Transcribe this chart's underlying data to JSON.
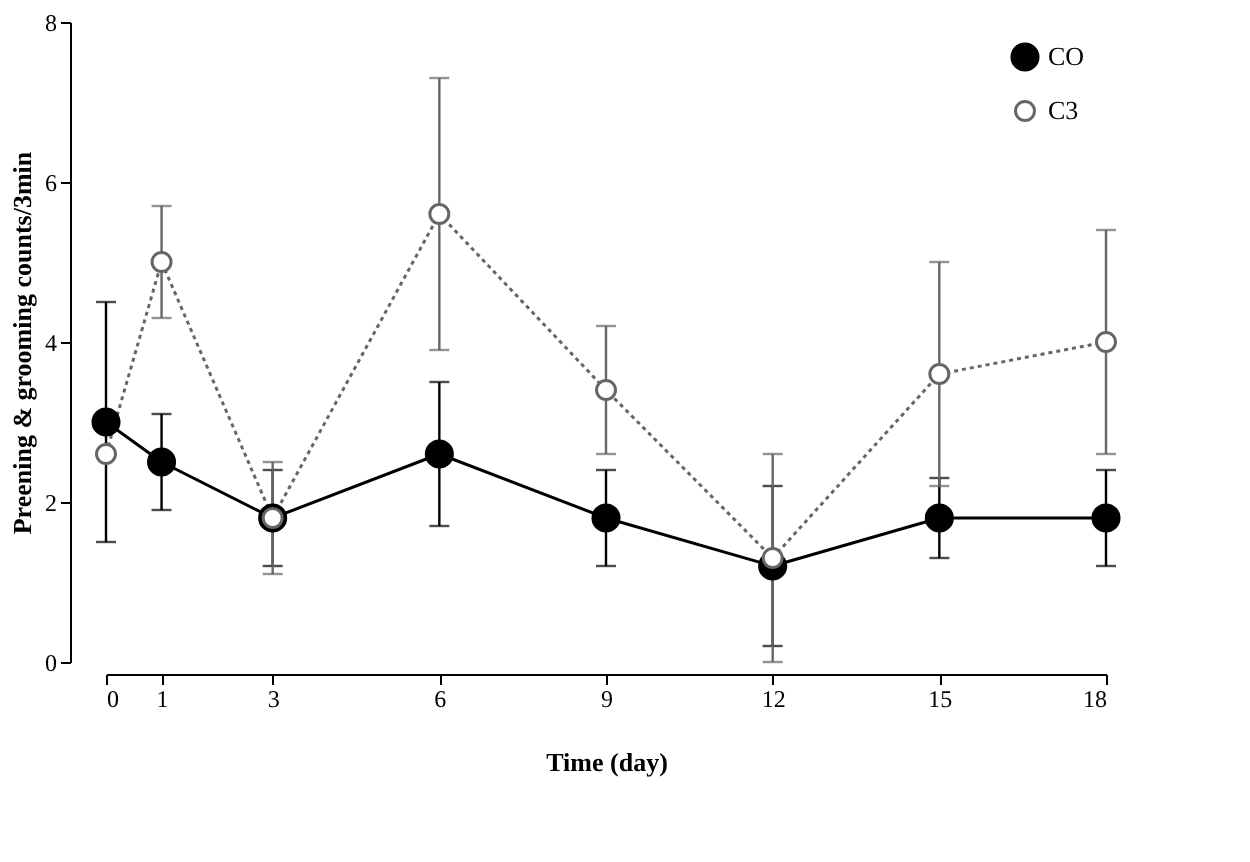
{
  "chart_data": {
    "type": "line",
    "xlabel": "Time (day)",
    "ylabel": "Preening & grooming counts/3min",
    "x": [
      0,
      1,
      3,
      6,
      9,
      12,
      15,
      18
    ],
    "series": [
      {
        "name": "CO",
        "color": "#000000",
        "marker": "circle",
        "line_style": "solid",
        "values": [
          3.0,
          2.5,
          1.8,
          2.6,
          1.8,
          1.2,
          1.8,
          1.8
        ],
        "errors": [
          1.5,
          0.6,
          0.6,
          0.9,
          0.6,
          1.0,
          0.5,
          0.6
        ]
      },
      {
        "name": "C3",
        "color": "#666666",
        "marker": "circle",
        "line_style": "dotted",
        "values": [
          2.6,
          5.0,
          1.8,
          5.6,
          3.4,
          1.3,
          3.6,
          4.0
        ],
        "errors": [
          null,
          0.7,
          0.7,
          1.7,
          0.8,
          1.3,
          1.4,
          1.4
        ]
      }
    ],
    "xlim": [
      0,
      18
    ],
    "xticks": [
      0,
      1,
      3,
      6,
      9,
      12,
      15,
      18
    ],
    "ylim": [
      0,
      8
    ],
    "yticks": [
      0,
      2,
      4,
      6,
      8
    ],
    "grid": false,
    "legend": "top right"
  }
}
